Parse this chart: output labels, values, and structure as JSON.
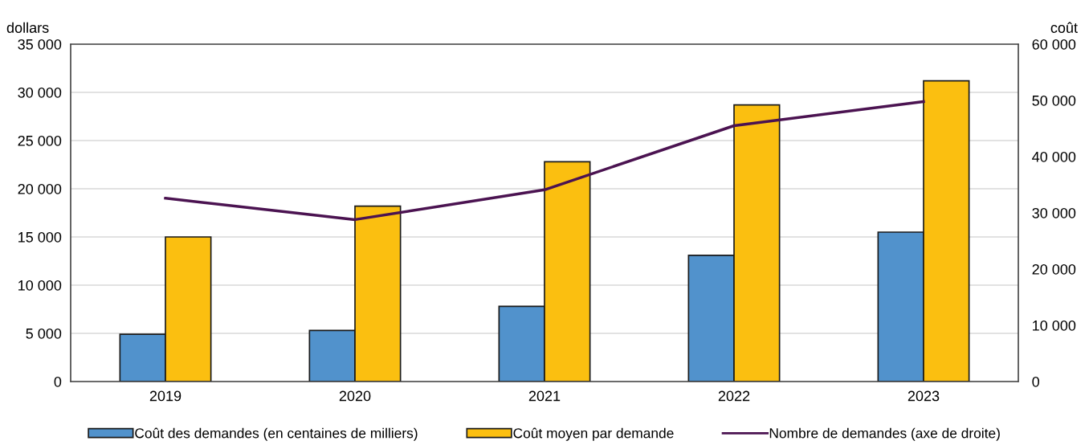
{
  "chart_data": {
    "type": "bar",
    "categories": [
      "2019",
      "2020",
      "2021",
      "2022",
      "2023"
    ],
    "ylabel": "dollars",
    "y2label": "coût",
    "series": [
      {
        "name": "Coût des demandes (en centaines de milliers)",
        "color": "#5192cc",
        "values": [
          4900,
          5300,
          7800,
          13100,
          15500
        ]
      },
      {
        "name": "Coût moyen par demande",
        "color": "#fbbf10",
        "values": [
          15000,
          18200,
          22800,
          28700,
          31200
        ]
      },
      {
        "name": "Nombre de demandes (axe de droite)",
        "type": "line",
        "axis": "y2",
        "color": "#4b1351",
        "values": [
          32600,
          28800,
          34100,
          45500,
          49800
        ]
      }
    ],
    "ylim": [
      0,
      35000
    ],
    "yticks": [
      0,
      {
        "value": 5000,
        "label": "5 000"
      },
      {
        "value": 10000,
        "label": "10 000"
      },
      {
        "value": 15000,
        "label": "15 000"
      },
      {
        "value": 20000,
        "label": "20 000"
      },
      {
        "value": 25000,
        "label": "25 000"
      },
      {
        "value": 30000,
        "label": "30 000"
      },
      {
        "value": 35000,
        "label": "35 000"
      }
    ],
    "y2lim": [
      0,
      60000
    ],
    "y2ticks": [
      0,
      {
        "value": 10000,
        "label": "10 000"
      },
      {
        "value": 20000,
        "label": "20 000"
      },
      {
        "value": 30000,
        "label": "30 000"
      },
      {
        "value": 40000,
        "label": "40 000"
      },
      {
        "value": 50000,
        "label": "50 000"
      },
      {
        "value": 60000,
        "label": "60 000"
      }
    ],
    "grid": "y",
    "legend": "bottom",
    "line_style": "solid"
  }
}
